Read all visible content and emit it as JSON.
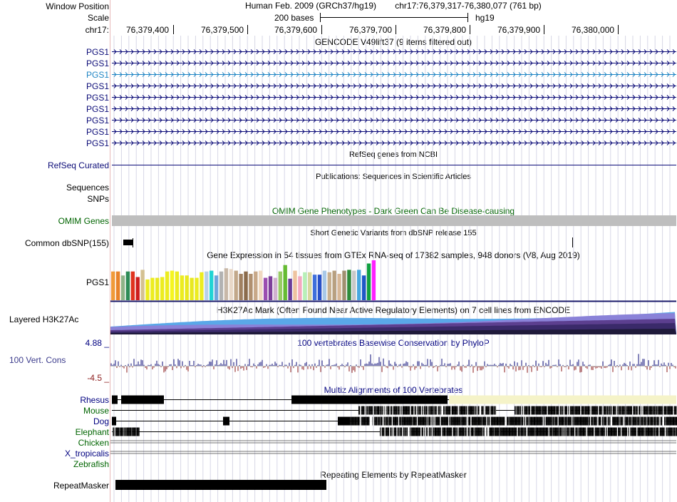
{
  "header": {
    "window_position_label": "Window Position",
    "scale_label": "Scale",
    "chrom_label": "chr17:",
    "assembly": "Human Feb. 2009 (GRCh37/hg19)",
    "position": "chr17:76,379,317-76,380,077 (761 bp)",
    "scale_text": "200 bases",
    "db": "hg19",
    "ruler_ticks": [
      "76,379,400",
      "76,379,500",
      "76,379,600",
      "76,379,700",
      "76,379,800",
      "76,379,900",
      "76,380,000"
    ]
  },
  "tracks": {
    "gencode": {
      "title": "GENCODE V49lift37 (9 items filtered out)",
      "items": [
        "PGS1",
        "PGS1",
        "PGS1",
        "PGS1",
        "PGS1",
        "PGS1",
        "PGS1",
        "PGS1",
        "PGS1"
      ],
      "highlighted_index": 2
    },
    "refseq": {
      "title": "RefSeq genes from NCBI",
      "label": "RefSeq Curated"
    },
    "publications": {
      "title": "Publications: Sequences in Scientific Articles",
      "label1": "Sequences",
      "label2": "SNPs"
    },
    "omim": {
      "title": "OMIM Gene Phenotypes - Dark Green Can Be Disease-causing",
      "label": "OMIM Genes"
    },
    "dbsnp": {
      "title": "Short Genetic Variants from dbSNP release 155",
      "label": "Common dbSNP(155)"
    },
    "gtex": {
      "title": "Gene Expression in 54 tissues from GTEx RNA-seq of 17382 samples, 948 donors (V8, Aug 2019)",
      "label": "PGS1",
      "bar_values": [
        0.72,
        0.72,
        0.62,
        0.72,
        0.72,
        0.58,
        0.76,
        0.52,
        0.56,
        0.56,
        0.58,
        0.72,
        0.74,
        0.72,
        0.62,
        0.62,
        0.56,
        0.56,
        0.7,
        0.72,
        0.74,
        0.62,
        0.72,
        0.8,
        0.78,
        0.74,
        0.66,
        0.72,
        0.66,
        0.72,
        0.74,
        0.56,
        0.6,
        0.56,
        0.72,
        0.88,
        0.54,
        0.74,
        0.6,
        0.7,
        0.7,
        0.64,
        0.64,
        0.74,
        0.7,
        0.74,
        0.66,
        0.74,
        0.76,
        0.74,
        0.76,
        0.62,
        0.92,
        1.0
      ],
      "bar_colors": [
        "#f09a3a",
        "#e8822a",
        "#8fb388",
        "#2e8b57",
        "#e0331f",
        "#cc1d1d",
        "#d4c192",
        "#ecec20",
        "#ecec20",
        "#e8e820",
        "#ecec20",
        "#ecec20",
        "#f5f520",
        "#ecec20",
        "#ecec20",
        "#e8e820",
        "#e8e820",
        "#ecec20",
        "#ecec20",
        "#b8d0e8",
        "#20d4d4",
        "#6fa5dc",
        "#b2b2b2",
        "#c8b8a8",
        "#e8d8c8",
        "#c2a88a",
        "#a08060",
        "#8b6b4b",
        "#b09070",
        "#c8a888",
        "#f0d8c0",
        "#9b4fb0",
        "#7d3f9a",
        "#d0b0d0",
        "#99cc66",
        "#66bb33",
        "#6a3d9a",
        "#eec3a0",
        "#f4a8c0",
        "#b8f0b8",
        "#d8d8a0",
        "#3f6fdc",
        "#2850c8",
        "#a8c8e8",
        "#c8b090",
        "#b8a080",
        "#d8b898",
        "#a09070",
        "#2e8b3a",
        "#c8c8c8",
        "#48a8e0",
        "#1f58c8",
        "#10a040",
        "#ff20ff"
      ]
    },
    "h3k27ac": {
      "title": "H3K27Ac Mark (Often Found Near Active Regulatory Elements) on 7 cell lines from ENCODE",
      "label": "Layered H3K27Ac"
    },
    "cons": {
      "title": "100 vertebrates Basewise Conservation by PhyloP",
      "label": "100 Vert. Cons",
      "max": "4.88 _",
      "min": "-4.5 _"
    },
    "multiz": {
      "title": "Multiz Alignments of 100 Vertebrates",
      "species": [
        "Rhesus",
        "Mouse",
        "Dog",
        "Elephant",
        "Chicken",
        "X_tropicalis",
        "Zebrafish"
      ]
    },
    "repeatmasker": {
      "title": "Repeating Elements by RepeatMasker",
      "label": "RepeatMasker"
    }
  },
  "colors": {
    "gene": "#0c0c78",
    "highlight": "#1f85c4",
    "grid": "#ccccdd",
    "omim": "#bebebe",
    "cons_pos": "#0c0c78",
    "cons_neg": "#8b1a1a",
    "rhesus_gap": "#f5f3c8"
  }
}
